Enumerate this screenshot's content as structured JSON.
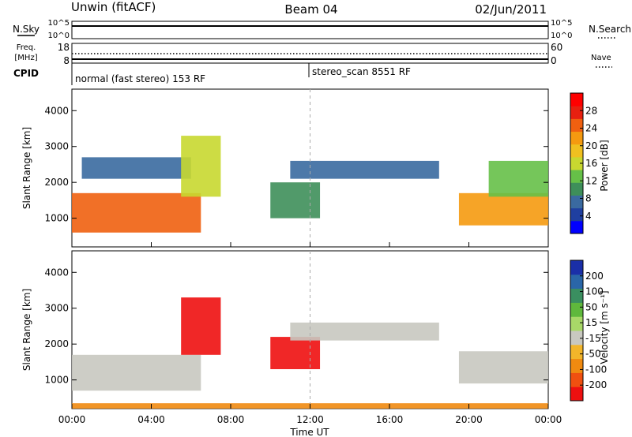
{
  "header": {
    "station": "Unwin (fitACF)",
    "beam": "Beam 04",
    "date": "02/Jun/2011"
  },
  "summary_panels": {
    "nsky_label": "N.Sky",
    "nsky_ticks": [
      "10^5",
      "10^0"
    ],
    "nsearch_label": "N.Search",
    "freq_label": "Freq.",
    "freq_unit": "[MHz]",
    "freq_ticks": [
      "18",
      "8"
    ],
    "nave_ticks": [
      "60",
      "0"
    ],
    "nave_label": "Nave",
    "cpid_label": "CPID",
    "cpid_modes": [
      {
        "label": "normal (fast stereo) 153 RF",
        "start_hour": 0
      },
      {
        "label": "stereo_scan 8551 RF",
        "start_hour": 12
      }
    ]
  },
  "axes": {
    "y_label": "Slant Range [km]",
    "y_ticks": [
      "4000",
      "3000",
      "2000",
      "1000"
    ],
    "x_label": "Time UT",
    "x_ticks": [
      "00:00",
      "04:00",
      "08:00",
      "12:00",
      "16:00",
      "20:00",
      "00:00"
    ]
  },
  "colorbars": {
    "power": {
      "label": "Power [dB]",
      "ticks": [
        "28",
        "24",
        "20",
        "16",
        "12",
        "8",
        "4"
      ],
      "colors": [
        "#0000ff",
        "#1f3fa0",
        "#3a6aa0",
        "#3e8f5a",
        "#66c048",
        "#c8d830",
        "#f0c020",
        "#f59a10",
        "#f06010",
        "#e82010",
        "#ff0000"
      ]
    },
    "velocity": {
      "label": "Velocity [m s⁻¹]",
      "ticks": [
        "200",
        "100",
        "50",
        "15",
        "-15",
        "-50",
        "-100",
        "-200"
      ],
      "colors": [
        "#1a2fa8",
        "#2a66a8",
        "#3a8f60",
        "#5fb83c",
        "#a8d868",
        "#c8c8c0",
        "#f2b52a",
        "#f08a10",
        "#f05010",
        "#ee1010"
      ]
    }
  },
  "chart_data": {
    "type": "heatmap",
    "xlabel": "Time UT",
    "ylabel": "Slant Range [km]",
    "xlim_hours": [
      0,
      24
    ],
    "ylim_km": [
      200,
      4600
    ],
    "power_echo_regions": [
      {
        "t0": 0.0,
        "t1": 6.5,
        "r0": 600,
        "r1": 1700,
        "value_db": 22
      },
      {
        "t0": 0.5,
        "t1": 6.0,
        "r0": 2100,
        "r1": 2700,
        "value_db": 8
      },
      {
        "t0": 5.5,
        "t1": 7.5,
        "r0": 1600,
        "r1": 3300,
        "value_db": 14
      },
      {
        "t0": 10.0,
        "t1": 12.5,
        "r0": 1000,
        "r1": 2000,
        "value_db": 10
      },
      {
        "t0": 11.0,
        "t1": 18.5,
        "r0": 2100,
        "r1": 2600,
        "value_db": 8
      },
      {
        "t0": 19.5,
        "t1": 24.0,
        "r0": 800,
        "r1": 1700,
        "value_db": 20
      },
      {
        "t0": 21.0,
        "t1": 24.0,
        "r0": 1600,
        "r1": 2600,
        "value_db": 12
      }
    ],
    "velocity_echo_regions": [
      {
        "t0": 0.0,
        "t1": 6.5,
        "r0": 700,
        "r1": 1700,
        "value_ms": 0
      },
      {
        "t0": 5.5,
        "t1": 7.5,
        "r0": 1700,
        "r1": 3300,
        "value_ms": -200
      },
      {
        "t0": 10.0,
        "t1": 12.5,
        "r0": 1300,
        "r1": 2200,
        "value_ms": -200
      },
      {
        "t0": 11.0,
        "t1": 18.5,
        "r0": 2100,
        "r1": 2600,
        "value_ms": 0
      },
      {
        "t0": 19.5,
        "t1": 24.0,
        "r0": 900,
        "r1": 1800,
        "value_ms": 0
      },
      {
        "t0": 0.0,
        "t1": 24.0,
        "r0": 200,
        "r1": 350,
        "value_ms": -50
      }
    ]
  }
}
